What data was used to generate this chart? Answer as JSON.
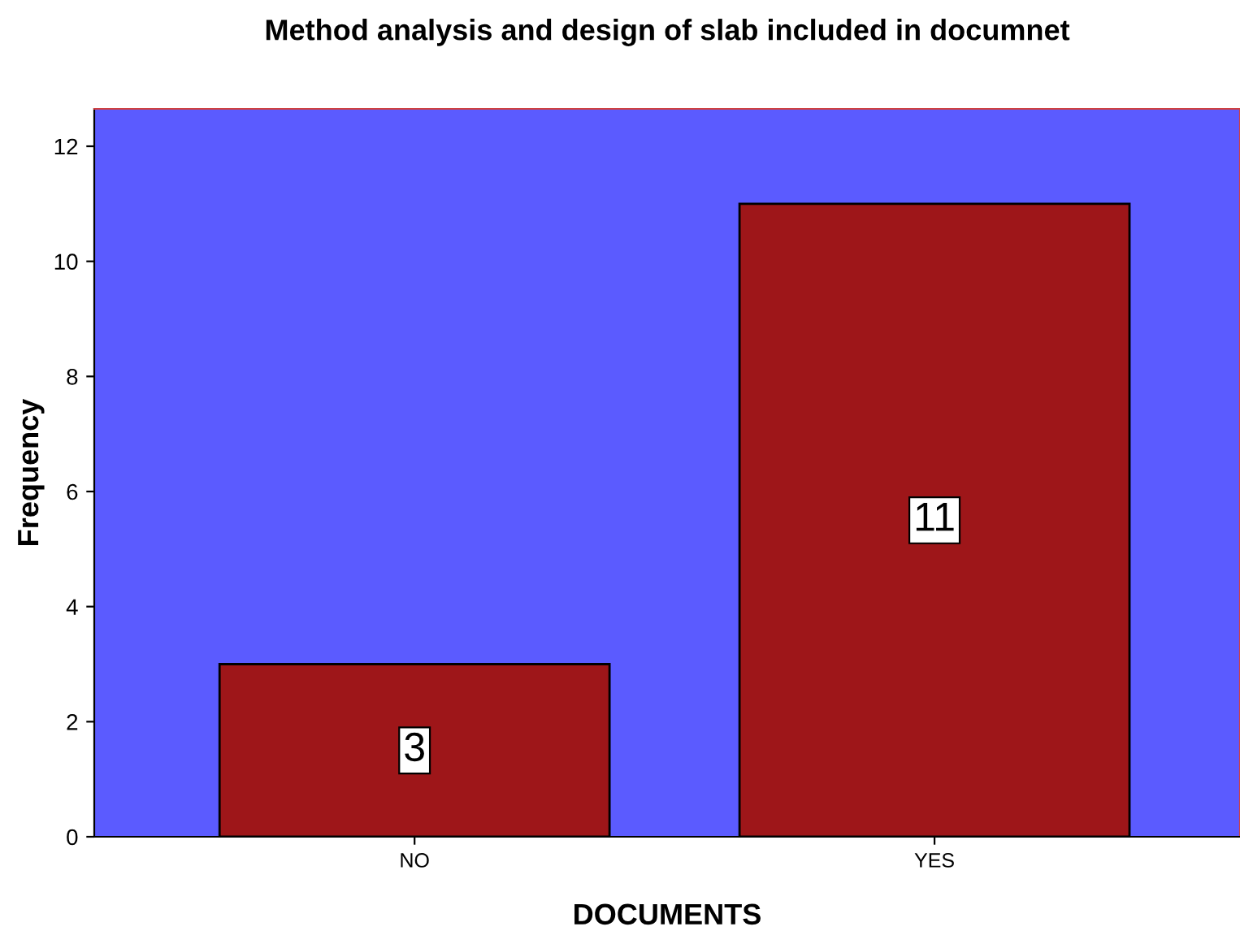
{
  "chart_data": {
    "type": "bar",
    "title": "Method analysis and design of slab included in documnet",
    "xlabel": "DOCUMENTS",
    "ylabel": "Frequency",
    "categories": [
      "NO",
      "YES"
    ],
    "values": [
      3,
      11
    ],
    "color": "#9e1619",
    "ylim": [
      0,
      12.65
    ],
    "yticks": [
      0,
      2,
      4,
      6,
      8,
      10,
      12
    ],
    "data_labels": true,
    "grid": false,
    "legend": false
  }
}
